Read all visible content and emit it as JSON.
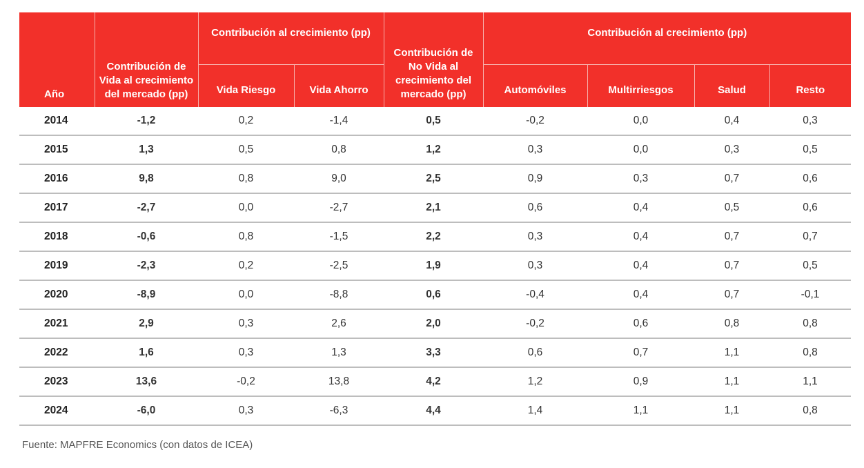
{
  "colors": {
    "header_bg": "#f2302a",
    "header_text": "#ffffff"
  },
  "headers": {
    "year": "Año",
    "vida_total": "Contribución de Vida al crecimiento del mercado (pp)",
    "vida_group": "Contribución al crecimiento (pp)",
    "vida_riesgo": "Vida Riesgo",
    "vida_ahorro": "Vida Ahorro",
    "novida_total": "Contribución de No Vida al crecimiento del mercado (pp)",
    "novida_group": "Contribución al crecimiento (pp)",
    "automoviles": "Automóviles",
    "multirriesgos": "Multirriesgos",
    "salud": "Salud",
    "resto": "Resto"
  },
  "rows": [
    [
      "2014",
      "-1,2",
      "0,2",
      "-1,4",
      "0,5",
      "-0,2",
      "0,0",
      "0,4",
      "0,3"
    ],
    [
      "2015",
      "1,3",
      "0,5",
      "0,8",
      "1,2",
      "0,3",
      "0,0",
      "0,3",
      "0,5"
    ],
    [
      "2016",
      "9,8",
      "0,8",
      "9,0",
      "2,5",
      "0,9",
      "0,3",
      "0,7",
      "0,6"
    ],
    [
      "2017",
      "-2,7",
      "0,0",
      "-2,7",
      "2,1",
      "0,6",
      "0,4",
      "0,5",
      "0,6"
    ],
    [
      "2018",
      "-0,6",
      "0,8",
      "-1,5",
      "2,2",
      "0,3",
      "0,4",
      "0,7",
      "0,7"
    ],
    [
      "2019",
      "-2,3",
      "0,2",
      "-2,5",
      "1,9",
      "0,3",
      "0,4",
      "0,7",
      "0,5"
    ],
    [
      "2020",
      "-8,9",
      "0,0",
      "-8,8",
      "0,6",
      "-0,4",
      "0,4",
      "0,7",
      "-0,1"
    ],
    [
      "2021",
      "2,9",
      "0,3",
      "2,6",
      "2,0",
      "-0,2",
      "0,6",
      "0,8",
      "0,8"
    ],
    [
      "2022",
      "1,6",
      "0,3",
      "1,3",
      "3,3",
      "0,6",
      "0,7",
      "1,1",
      "0,8"
    ],
    [
      "2023",
      "13,6",
      "-0,2",
      "13,8",
      "4,2",
      "1,2",
      "0,9",
      "1,1",
      "1,1"
    ],
    [
      "2024",
      "-6,0",
      "0,3",
      "-6,3",
      "4,4",
      "1,4",
      "1,1",
      "1,1",
      "0,8"
    ]
  ],
  "source": "Fuente: MAPFRE Economics (con datos de ICEA)"
}
